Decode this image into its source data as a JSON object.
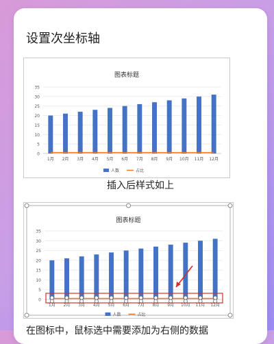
{
  "heading": "设置次坐标轴",
  "caption_1": "插入后样式如上",
  "body_text": "在图标中，鼠标选中需要添加为右侧的数据",
  "colors": {
    "bar": "#4472c4",
    "line": "#ed7d31",
    "highlight": "#d0312d",
    "arrow": "#d42a2a"
  },
  "chart_data": [
    {
      "type": "bar",
      "title": "图表标题",
      "categories": [
        "1月",
        "2月",
        "3月",
        "4月",
        "5月",
        "6月",
        "7月",
        "8月",
        "9月",
        "10月",
        "11月",
        "12月"
      ],
      "series": [
        {
          "name": "人数",
          "type": "bar",
          "values": [
            20,
            21,
            22,
            23,
            24,
            25,
            26,
            27,
            28,
            29,
            30,
            31
          ]
        },
        {
          "name": "占比",
          "type": "line",
          "values": [
            0.5,
            0.5,
            0.5,
            0.5,
            0.5,
            0.5,
            0.5,
            0.5,
            0.5,
            0.5,
            0.5,
            0.5
          ]
        }
      ],
      "yticks": [
        "0",
        "5",
        "10",
        "15",
        "20",
        "25",
        "30",
        "35"
      ],
      "ylim": [
        0,
        35
      ],
      "grid": true,
      "legend": "bottom"
    },
    {
      "type": "bar",
      "title": "图表标题",
      "categories": [
        "1月",
        "2月",
        "3月",
        "4月",
        "5月",
        "6月",
        "7月",
        "8月",
        "9月",
        "10月",
        "11月",
        "12月"
      ],
      "series": [
        {
          "name": "人数",
          "type": "bar",
          "values": [
            20,
            21,
            22,
            23,
            24,
            25,
            26,
            27,
            28,
            29,
            30,
            31
          ]
        },
        {
          "name": "占比",
          "type": "line",
          "values": [
            0.5,
            0.5,
            0.5,
            0.5,
            0.5,
            0.5,
            0.5,
            0.5,
            0.5,
            0.5,
            0.5,
            0.5
          ],
          "selected": true
        }
      ],
      "yticks": [
        "0",
        "5",
        "10",
        "15",
        "20",
        "25",
        "30",
        "35"
      ],
      "ylim": [
        0,
        35
      ],
      "grid": true,
      "legend": "bottom",
      "chart_selected": true
    }
  ]
}
